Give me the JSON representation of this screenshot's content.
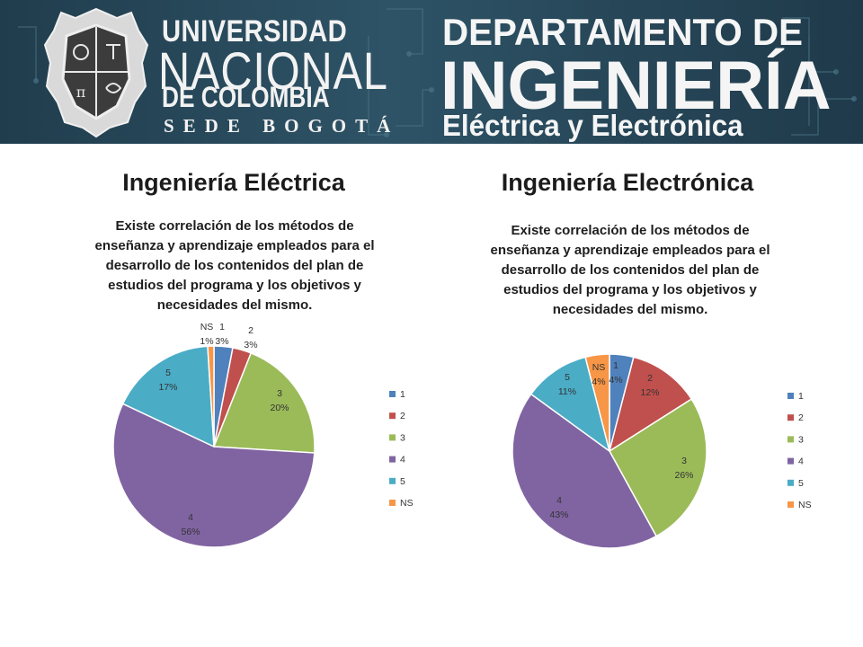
{
  "banner": {
    "university_line1": "UNIVERSIDAD",
    "university_line2": "NACIONAL",
    "university_line3": "DE COLOMBIA",
    "university_line4": "SEDE BOGOTÁ",
    "dept_line1": "DEPARTAMENTO DE",
    "dept_line2": "INGENIERÍA",
    "dept_line3": "Eléctrica y Electrónica",
    "logo_icon": "university-seal-icon"
  },
  "colors": {
    "s1": "#4f81bd",
    "s2": "#c0504d",
    "s3": "#9bbb59",
    "s4": "#8064a2",
    "s5": "#4bacc6",
    "sNS": "#f79646"
  },
  "sections": [
    {
      "heading": "Ingeniería Eléctrica"
    },
    {
      "heading": "Ingeniería Electrónica"
    }
  ],
  "chart_data": [
    {
      "type": "pie",
      "title": "Existe correlación de los métodos de enseñanza y aprendizaje empleados para el desarrollo de los contenidos del plan de estudios del programa y los objetivos y necesidades del mismo.",
      "categories": [
        "1",
        "2",
        "3",
        "4",
        "5",
        "NS"
      ],
      "values": [
        3,
        3,
        20,
        56,
        17,
        1
      ],
      "value_labels": [
        "3%",
        "3%",
        "20%",
        "56%",
        "17%",
        "1%"
      ],
      "legend": [
        "1",
        "2",
        "3",
        "4",
        "5",
        "NS"
      ],
      "legend_position": "right"
    },
    {
      "type": "pie",
      "title": "Existe correlación de los métodos de enseñanza y aprendizaje empleados para el desarrollo de los contenidos del plan de estudios del programa y los objetivos y necesidades del mismo.",
      "categories": [
        "1",
        "2",
        "3",
        "4",
        "5",
        "NS"
      ],
      "values": [
        4,
        12,
        26,
        43,
        11,
        4
      ],
      "value_labels": [
        "4%",
        "12%",
        "26%",
        "43%",
        "11%",
        "4%"
      ],
      "legend": [
        "1",
        "2",
        "3",
        "4",
        "5",
        "NS"
      ],
      "legend_position": "right"
    }
  ]
}
